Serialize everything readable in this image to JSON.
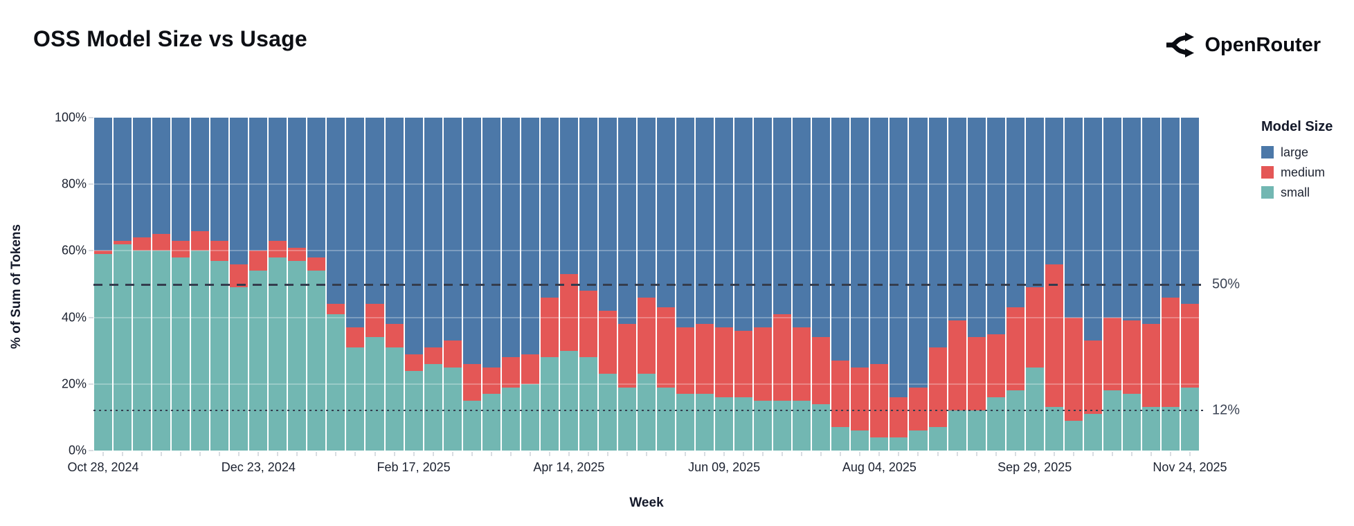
{
  "page": {
    "title": "OSS Model Size vs Usage",
    "brand": "OpenRouter"
  },
  "chart_data": {
    "type": "bar",
    "stacked": true,
    "normalized_percent": true,
    "title": "OSS Model Size vs Usage",
    "xlabel": "Week",
    "ylabel": "% of Sum of Tokens",
    "ylim": [
      0,
      100
    ],
    "grid": true,
    "y_ticks": [
      {
        "value": 0,
        "label": "0%"
      },
      {
        "value": 20,
        "label": "20%"
      },
      {
        "value": 40,
        "label": "40%"
      },
      {
        "value": 60,
        "label": "60%"
      },
      {
        "value": 80,
        "label": "80%"
      },
      {
        "value": 100,
        "label": "100%"
      }
    ],
    "x_tick_marks": [
      {
        "index": 0,
        "label": "Oct 28, 2024"
      },
      {
        "index": 8,
        "label": "Dec 23, 2024"
      },
      {
        "index": 16,
        "label": "Feb 17, 2025"
      },
      {
        "index": 24,
        "label": "Apr 14, 2025"
      },
      {
        "index": 32,
        "label": "Jun 09, 2025"
      },
      {
        "index": 40,
        "label": "Aug 04, 2025"
      },
      {
        "index": 48,
        "label": "Sep 29, 2025"
      },
      {
        "index": 56,
        "label": "Nov 24, 2025"
      }
    ],
    "reference_lines": [
      {
        "value": 50,
        "label": "50%",
        "style": "dashed"
      },
      {
        "value": 12,
        "label": "12%",
        "style": "dotted"
      }
    ],
    "legend": {
      "title": "Model Size",
      "position": "right",
      "entries": [
        {
          "label": "large",
          "color": "#4c78a8"
        },
        {
          "label": "medium",
          "color": "#e45756"
        },
        {
          "label": "small",
          "color": "#72b7b2"
        }
      ]
    },
    "categories": [
      "Oct 28, 2024",
      "Nov 04, 2024",
      "Nov 11, 2024",
      "Nov 18, 2024",
      "Nov 25, 2024",
      "Dec 02, 2024",
      "Dec 09, 2024",
      "Dec 16, 2024",
      "Dec 23, 2024",
      "Dec 30, 2024",
      "Jan 06, 2025",
      "Jan 13, 2025",
      "Jan 20, 2025",
      "Jan 27, 2025",
      "Feb 03, 2025",
      "Feb 10, 2025",
      "Feb 17, 2025",
      "Feb 24, 2025",
      "Mar 03, 2025",
      "Mar 10, 2025",
      "Mar 17, 2025",
      "Mar 24, 2025",
      "Mar 31, 2025",
      "Apr 07, 2025",
      "Apr 14, 2025",
      "Apr 21, 2025",
      "Apr 28, 2025",
      "May 05, 2025",
      "May 12, 2025",
      "May 19, 2025",
      "May 26, 2025",
      "Jun 02, 2025",
      "Jun 09, 2025",
      "Jun 16, 2025",
      "Jun 23, 2025",
      "Jun 30, 2025",
      "Jul 07, 2025",
      "Jul 14, 2025",
      "Jul 21, 2025",
      "Jul 28, 2025",
      "Aug 04, 2025",
      "Aug 11, 2025",
      "Aug 18, 2025",
      "Aug 25, 2025",
      "Sep 01, 2025",
      "Sep 08, 2025",
      "Sep 15, 2025",
      "Sep 22, 2025",
      "Sep 29, 2025",
      "Oct 06, 2025",
      "Oct 13, 2025",
      "Oct 20, 2025",
      "Oct 27, 2025",
      "Nov 03, 2025",
      "Nov 10, 2025",
      "Nov 17, 2025",
      "Nov 24, 2025"
    ],
    "series": [
      {
        "name": "small",
        "color": "#72b7b2",
        "values": [
          59,
          62,
          60,
          60,
          58,
          60,
          57,
          49,
          54,
          58,
          57,
          54,
          41,
          31,
          34,
          31,
          24,
          26,
          25,
          15,
          17,
          19,
          20,
          28,
          30,
          28,
          23,
          19,
          23,
          19,
          17,
          17,
          16,
          16,
          15,
          15,
          15,
          14,
          7,
          6,
          4,
          4,
          6,
          7,
          12,
          12,
          16,
          18,
          25,
          13,
          9,
          11,
          18,
          17,
          13,
          13,
          19
        ]
      },
      {
        "name": "medium",
        "color": "#e45756",
        "values": [
          1,
          1,
          4,
          5,
          5,
          6,
          6,
          7,
          6,
          5,
          4,
          4,
          3,
          6,
          10,
          7,
          5,
          5,
          8,
          11,
          8,
          9,
          9,
          18,
          23,
          20,
          19,
          19,
          23,
          24,
          20,
          21,
          21,
          20,
          22,
          26,
          22,
          20,
          20,
          19,
          22,
          12,
          13,
          24,
          27,
          22,
          19,
          25,
          24,
          43,
          31,
          22,
          22,
          22,
          25,
          33,
          25
        ]
      },
      {
        "name": "large",
        "color": "#4c78a8",
        "values": [
          40,
          37,
          36,
          35,
          37,
          34,
          37,
          44,
          40,
          37,
          39,
          42,
          56,
          63,
          56,
          62,
          71,
          69,
          67,
          74,
          75,
          72,
          71,
          54,
          47,
          52,
          58,
          62,
          54,
          57,
          63,
          62,
          63,
          64,
          63,
          59,
          63,
          66,
          73,
          75,
          74,
          84,
          81,
          69,
          61,
          66,
          65,
          57,
          51,
          44,
          60,
          67,
          60,
          61,
          62,
          54,
          56
        ]
      }
    ]
  }
}
